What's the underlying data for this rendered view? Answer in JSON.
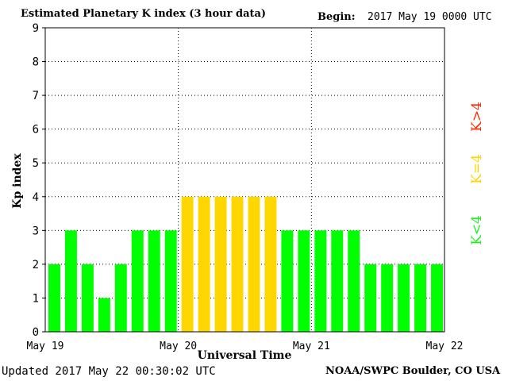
{
  "header": {
    "title": "Estimated Planetary K index (3 hour data)",
    "begin_label": "Begin:",
    "begin_value": "2017 May 19 0000 UTC"
  },
  "footer": {
    "updated": "Updated 2017 May 22 00:30:02 UTC",
    "source": "NOAA/SWPC Boulder, CO USA"
  },
  "legend": {
    "high": "K>4",
    "equal": "K=4",
    "low": "K<4"
  },
  "colors": {
    "low": "#00ff00",
    "equal": "#ffd700",
    "high": "#ff2a00",
    "high_text": "#ff2a00",
    "equal_text": "#ffd700",
    "low_text": "#22ee22"
  },
  "chart_data": {
    "type": "bar",
    "title": "Estimated Planetary K index (3 hour data)",
    "xlabel": "Universal Time",
    "ylabel": "Kp index",
    "ylim": [
      0,
      9
    ],
    "y_ticks": [
      "0",
      "1",
      "2",
      "3",
      "4",
      "5",
      "6",
      "7",
      "8",
      "9"
    ],
    "x_ticks": [
      "May 19",
      "May 20",
      "May 21",
      "May 22"
    ],
    "grid": true,
    "categories": [
      "May 19 00",
      "May 19 03",
      "May 19 06",
      "May 19 09",
      "May 19 12",
      "May 19 15",
      "May 19 18",
      "May 19 21",
      "May 20 00",
      "May 20 03",
      "May 20 06",
      "May 20 09",
      "May 20 12",
      "May 20 15",
      "May 20 18",
      "May 20 21",
      "May 21 00",
      "May 21 03",
      "May 21 06",
      "May 21 09",
      "May 21 12",
      "May 21 15",
      "May 21 18",
      "May 21 21"
    ],
    "values": [
      2,
      3,
      2,
      1,
      2,
      3,
      3,
      3,
      4,
      4,
      4,
      4,
      4,
      4,
      3,
      3,
      3,
      3,
      3,
      2,
      2,
      2,
      2,
      2
    ]
  }
}
